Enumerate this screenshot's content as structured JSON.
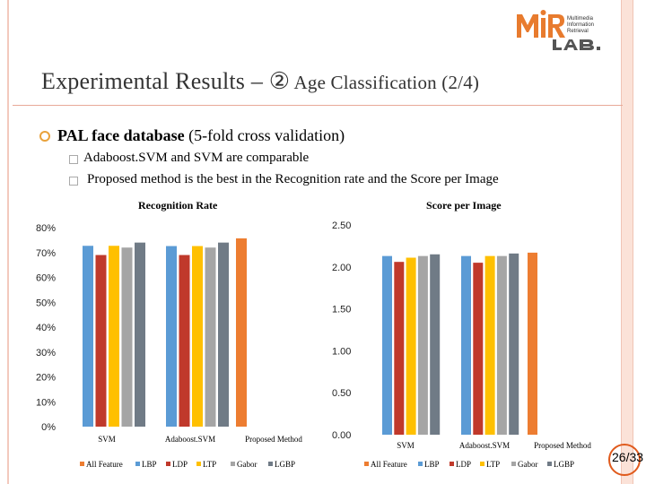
{
  "slide": {
    "title_main": "Experimental Results – ②",
    "title_sub": " Age Classification (2/4)",
    "bullet_bold": "PAL face database",
    "bullet_rest": " (5-fold cross validation)",
    "sub_bullets": [
      "Adaboost.SVM and SVM are comparable",
      "Proposed method is the best in the Recognition rate and the Score per Image"
    ],
    "page": "26/33",
    "logo_text": [
      "Multimedia",
      "Information",
      "Retrieval"
    ],
    "colors": {
      "accent": "#e9a23b",
      "rule": "#e8a998"
    }
  },
  "chart_data": [
    {
      "type": "bar",
      "title": "Recognition Rate",
      "categories": [
        "SVM",
        "Adaboost.SVM",
        "Proposed Method"
      ],
      "ylim": [
        0,
        0.8
      ],
      "yticks": [
        "0%",
        "10%",
        "20%",
        "30%",
        "40%",
        "50%",
        "60%",
        "70%",
        "80%"
      ],
      "grid": false,
      "legend_position": "bottom",
      "series": [
        {
          "name": "All Feature",
          "color": "#ed7d31",
          "values": [
            null,
            null,
            0.757
          ]
        },
        {
          "name": "LBP",
          "color": "#5b9bd5",
          "values": [
            0.727,
            0.726,
            null
          ]
        },
        {
          "name": "LDP",
          "color": "#c0392b",
          "values": [
            0.69,
            0.69,
            null
          ]
        },
        {
          "name": "LTP",
          "color": "#ffc000",
          "values": [
            0.727,
            0.726,
            null
          ]
        },
        {
          "name": "Gabor",
          "color": "#a5a5a5",
          "values": [
            0.72,
            0.72,
            null
          ]
        },
        {
          "name": "LGBP",
          "color": "#707b86",
          "values": [
            0.74,
            0.74,
            null
          ]
        }
      ]
    },
    {
      "type": "bar",
      "title": "Score per Image",
      "categories": [
        "SVM",
        "Adaboost.SVM",
        "Proposed Method"
      ],
      "ylim": [
        0,
        2.5
      ],
      "yticks": [
        "0.00",
        "0.50",
        "1.00",
        "1.50",
        "2.00",
        "2.50"
      ],
      "grid": false,
      "legend_position": "bottom",
      "series": [
        {
          "name": "All Feature",
          "color": "#ed7d31",
          "values": [
            null,
            null,
            2.17
          ]
        },
        {
          "name": "LBP",
          "color": "#5b9bd5",
          "values": [
            2.13,
            2.13,
            null
          ]
        },
        {
          "name": "LDP",
          "color": "#c0392b",
          "values": [
            2.06,
            2.05,
            null
          ]
        },
        {
          "name": "LTP",
          "color": "#ffc000",
          "values": [
            2.11,
            2.13,
            null
          ]
        },
        {
          "name": "Gabor",
          "color": "#a5a5a5",
          "values": [
            2.13,
            2.13,
            null
          ]
        },
        {
          "name": "LGBP",
          "color": "#707b86",
          "values": [
            2.15,
            2.16,
            null
          ]
        }
      ]
    }
  ]
}
